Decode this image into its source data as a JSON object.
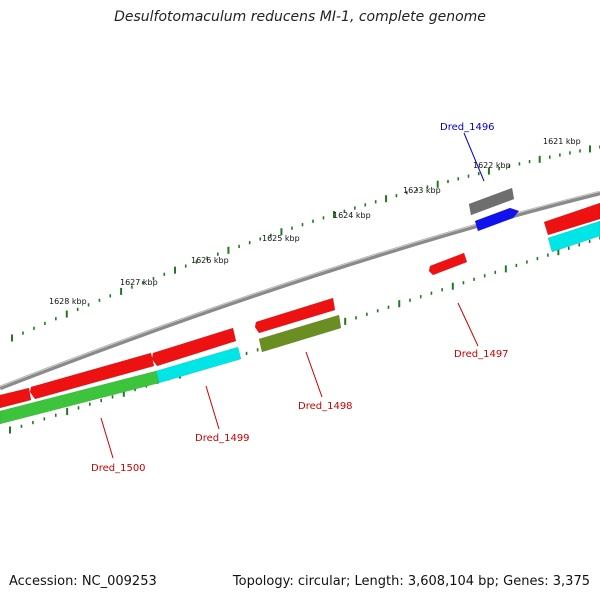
{
  "title": "Desulfotomaculum reducens MI-1, complete genome",
  "accession": "Accession: NC_009253",
  "topology": "Topology: circular; Length: 3,608,104 bp; Genes: 3,375",
  "colors": {
    "backbone": "#8a8a8a",
    "ticks": "#1e7a1e",
    "cds_red": "#ee1111",
    "cds_green": "#3cc43c",
    "cds_cyan": "#00e5e5",
    "cds_olive": "#6b8e23",
    "cds_gray": "#6e6e6e",
    "cds_blue": "#1111ee",
    "label_red": "#cc0000",
    "label_blue": "#0000cc"
  },
  "scale_labels": [
    "1621 kbp",
    "1622 kbp",
    "1623 kbp",
    "1624 kbp",
    "1625 kbp",
    "1626 kbp",
    "1627 kbp",
    "1628 kbp"
  ],
  "gene_labels": [
    {
      "name": "Dred_1496",
      "color": "blue"
    },
    {
      "name": "Dred_1497",
      "color": "red"
    },
    {
      "name": "Dred_1498",
      "color": "red"
    },
    {
      "name": "Dred_1499",
      "color": "red"
    },
    {
      "name": "Dred_1500",
      "color": "red"
    }
  ]
}
